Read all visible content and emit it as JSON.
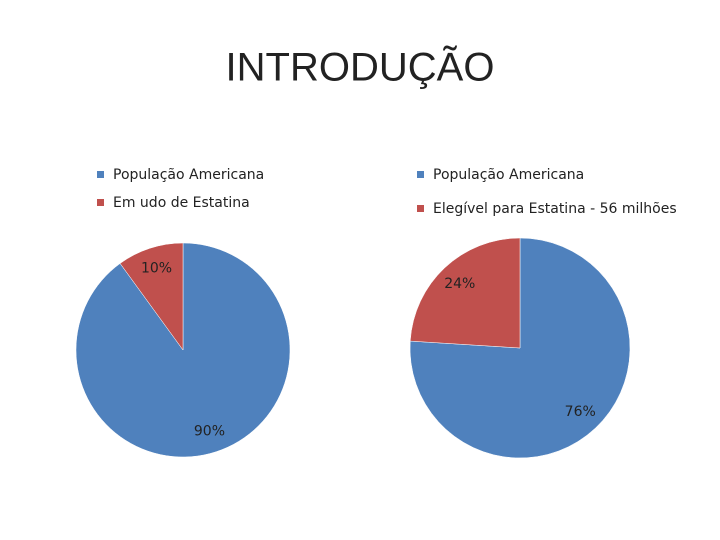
{
  "title": "INTRODUÇÃO",
  "chart_data": [
    {
      "type": "pie",
      "categories": [
        "População Americana",
        "Em udo de Estatina"
      ],
      "values": [
        90,
        10
      ],
      "value_labels": [
        "90%",
        "10%"
      ],
      "colors": [
        "#4f81bd",
        "#c0504d"
      ]
    },
    {
      "type": "pie",
      "categories": [
        "População Americana",
        "Elegível para Estatina - 56 milhões"
      ],
      "values": [
        76,
        24
      ],
      "value_labels": [
        "76%",
        "24%"
      ],
      "colors": [
        "#4f81bd",
        "#c0504d"
      ]
    }
  ]
}
